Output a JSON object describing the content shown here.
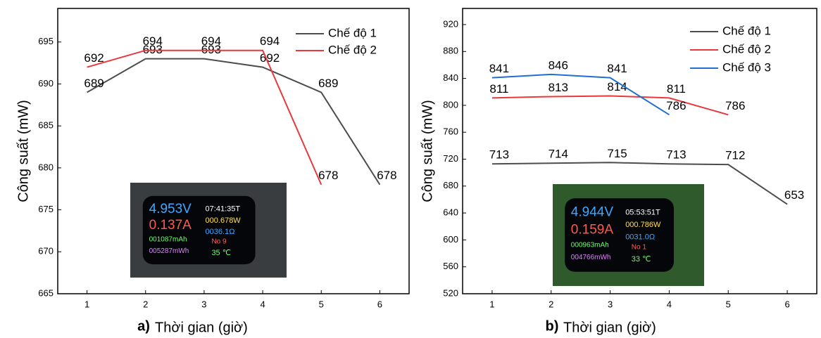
{
  "chart_data": [
    {
      "type": "line",
      "panel_label": "a)",
      "x_label": "Thời gian (giờ)",
      "y_label": "Công suất (mW)",
      "xlim": [
        0.5,
        6.5
      ],
      "xticks": [
        1,
        2,
        3,
        4,
        5,
        6
      ],
      "ylim": [
        665,
        699
      ],
      "yticks": [
        665,
        670,
        675,
        680,
        685,
        690,
        695
      ],
      "series": [
        {
          "name": "Chế độ 1",
          "color": "#4d4d4d",
          "x": [
            1,
            2,
            3,
            4,
            5,
            6
          ],
          "values": [
            689,
            693,
            693,
            692,
            689,
            678
          ]
        },
        {
          "name": "Chế độ 2",
          "color": "#e8383d",
          "x": [
            1,
            2,
            3,
            4,
            5
          ],
          "values": [
            692,
            694,
            694,
            694,
            678
          ]
        }
      ],
      "inset_texts": [
        "4.953V",
        "07:41:35T",
        "0.137A",
        "000.678W",
        "0036.1Ω",
        "001087mAh",
        "No  9",
        "005287mWh",
        "35 ℃"
      ]
    },
    {
      "type": "line",
      "panel_label": "b)",
      "x_label": "Thời gian (giờ)",
      "y_label": "Công suất (mW)",
      "xlim": [
        0.5,
        6.5
      ],
      "xticks": [
        1,
        2,
        3,
        4,
        5,
        6
      ],
      "ylim": [
        520,
        944
      ],
      "yticks": [
        520,
        560,
        600,
        640,
        680,
        720,
        760,
        800,
        840,
        880,
        920
      ],
      "series": [
        {
          "name": "Chế độ 1",
          "color": "#4d4d4d",
          "x": [
            1,
            2,
            3,
            4,
            5,
            6
          ],
          "values": [
            713,
            714,
            715,
            713,
            712,
            653
          ]
        },
        {
          "name": "Chế độ 2",
          "color": "#e8383d",
          "x": [
            1,
            2,
            3,
            4,
            5
          ],
          "values": [
            811,
            813,
            814,
            811,
            786
          ]
        },
        {
          "name": "Chế độ 3",
          "color": "#1f6fd1",
          "x": [
            1,
            2,
            3,
            4
          ],
          "values": [
            841,
            846,
            841,
            786
          ]
        }
      ],
      "inset_texts": [
        "4.944V",
        "05:53:51T",
        "0.159A",
        "000.786W",
        "0031.0Ω",
        "000963mAh",
        "No  1",
        "004766mWh",
        "33 ℃"
      ]
    }
  ]
}
